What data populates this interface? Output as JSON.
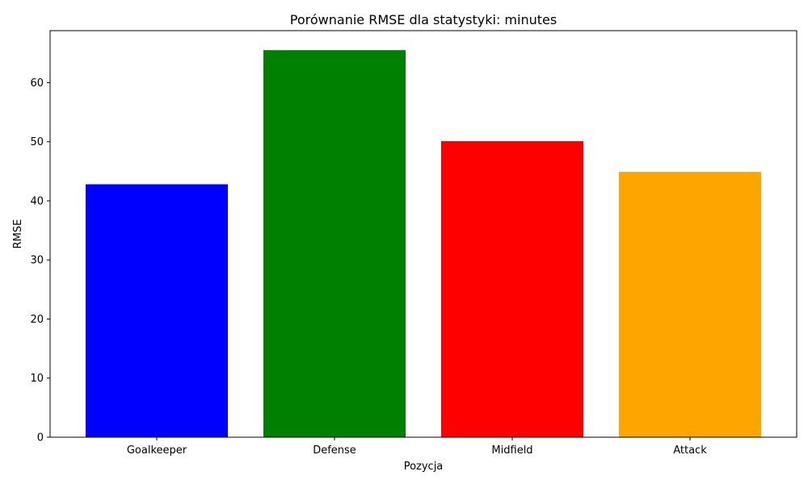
{
  "chart_data": {
    "type": "bar",
    "title": "Porównanie RMSE dla statystyki: minutes",
    "xlabel": "Pozycja",
    "ylabel": "RMSE",
    "categories": [
      "Goalkeeper",
      "Defense",
      "Midfield",
      "Attack"
    ],
    "values": [
      42.8,
      65.5,
      50.1,
      44.9
    ],
    "colors": [
      "#0000ff",
      "#008000",
      "#ff0000",
      "#ffa500"
    ],
    "ylim": [
      0,
      68.8
    ],
    "yticks": [
      0,
      10,
      20,
      30,
      40,
      50,
      60
    ],
    "grid": false,
    "legend": "none"
  }
}
